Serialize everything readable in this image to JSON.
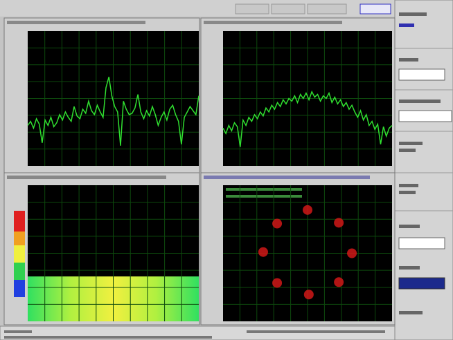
{
  "spectrum_left": {
    "ylim": [
      0,
      100
    ],
    "values": [
      30,
      33,
      28,
      35,
      31,
      17,
      34,
      30,
      36,
      29,
      32,
      38,
      34,
      40,
      36,
      33,
      44,
      37,
      35,
      42,
      39,
      48,
      41,
      38,
      45,
      40,
      36,
      58,
      66,
      52,
      44,
      40,
      15,
      48,
      42,
      38,
      39,
      43,
      53,
      40,
      35,
      41,
      37,
      44,
      38,
      30,
      36,
      40,
      34,
      42,
      45,
      38,
      33,
      16,
      36,
      40,
      44,
      41,
      38,
      52
    ]
  },
  "spectrum_right": {
    "ylim": [
      0,
      100
    ],
    "values": [
      28,
      24,
      30,
      26,
      32,
      29,
      14,
      34,
      30,
      36,
      33,
      38,
      35,
      40,
      37,
      43,
      40,
      45,
      42,
      47,
      44,
      49,
      46,
      50,
      48,
      52,
      47,
      53,
      50,
      54,
      49,
      55,
      51,
      53,
      48,
      52,
      50,
      54,
      47,
      51,
      46,
      49,
      44,
      47,
      42,
      45,
      40,
      36,
      41,
      34,
      38,
      30,
      33,
      27,
      31,
      16,
      29,
      22,
      28,
      30
    ]
  },
  "constellation": {
    "xlim": [
      -2,
      2
    ],
    "ylim": [
      -1.65,
      1.65
    ],
    "x": [
      0,
      0.74,
      1.05,
      0.74,
      0.03,
      -0.72,
      -1.05,
      -0.72
    ],
    "y": [
      1.05,
      0.74,
      0,
      -0.7,
      -1.0,
      -0.72,
      0.03,
      0.72
    ]
  }
}
